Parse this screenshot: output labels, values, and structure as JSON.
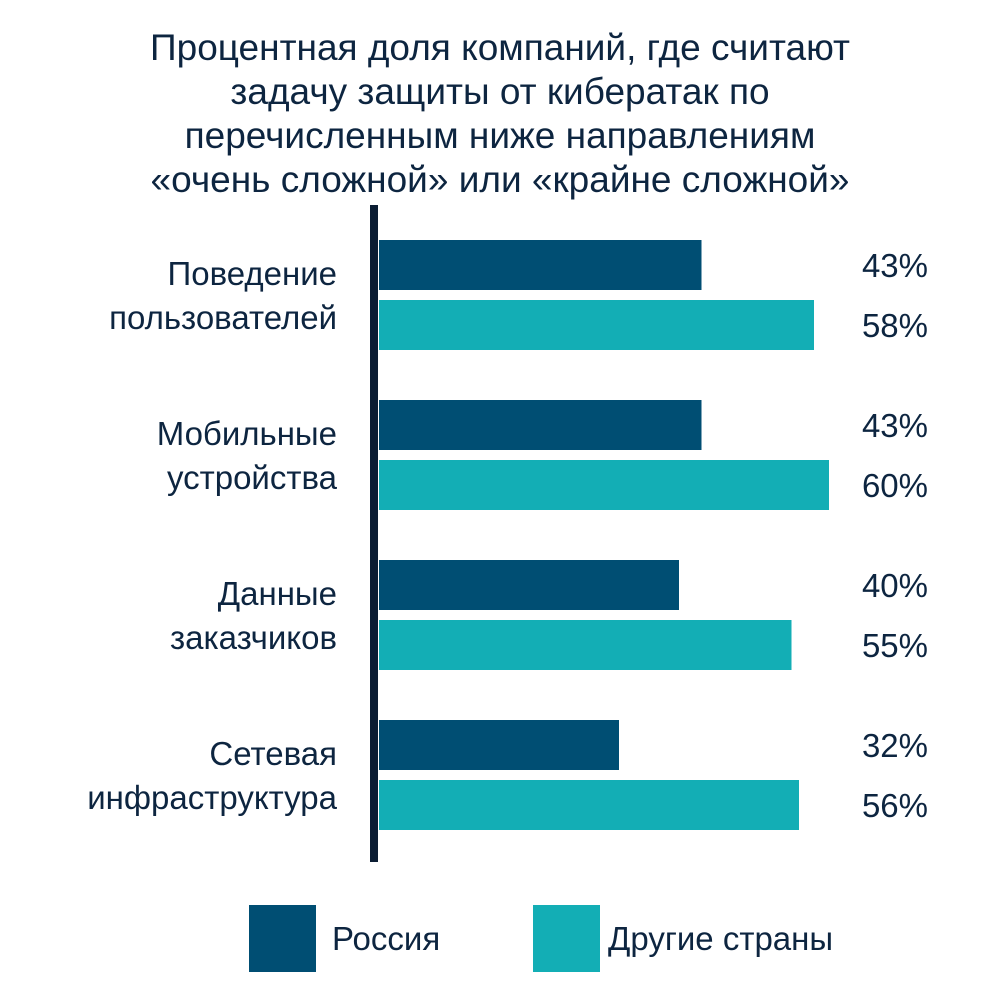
{
  "colors": {
    "russia": "#004e73",
    "other": "#13aeb5",
    "axis": "#0b1d33",
    "text": "#0d2540"
  },
  "chart_data": {
    "type": "bar",
    "orientation": "horizontal",
    "title": "Процентная доля компаний, где считают задачу защиты от кибератак по перечисленным ниже направлениям «очень сложной» или «крайне сложной»",
    "title_lines": [
      "Процентная доля компаний, где считают",
      "задачу защиты от кибератак по",
      "перечисленным ниже направлениям",
      "«очень сложной» или «крайне сложной»"
    ],
    "categories": [
      "Поведение пользователей",
      "Мобильные устройства",
      "Данные заказчиков",
      "Сетевая инфраструктура"
    ],
    "category_lines": [
      [
        "Поведение",
        "пользователей"
      ],
      [
        "Мобильные",
        "устройства"
      ],
      [
        "Данные",
        "заказчиков"
      ],
      [
        "Сетевая",
        "инфраструктура"
      ]
    ],
    "series": [
      {
        "name": "Россия",
        "values": [
          43,
          43,
          40,
          32
        ],
        "labels": [
          "43%",
          "43%",
          "40%",
          "32%"
        ]
      },
      {
        "name": "Другие страны",
        "values": [
          58,
          60,
          55,
          56
        ],
        "labels": [
          "58%",
          "60%",
          "55%",
          "56%"
        ]
      }
    ],
    "xlim": [
      0,
      60
    ],
    "grid": false,
    "legend_position": "bottom"
  }
}
